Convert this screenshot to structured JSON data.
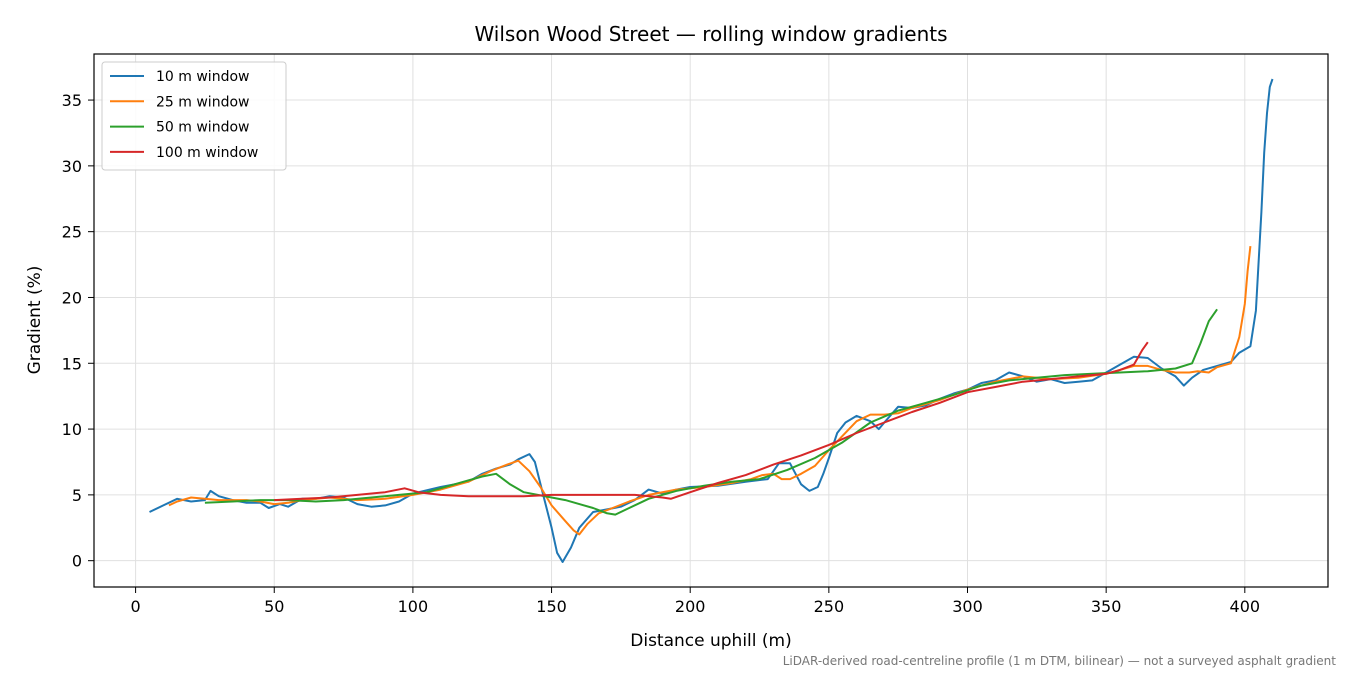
{
  "chart_data": {
    "type": "line",
    "title": "Wilson Wood Street — rolling window gradients",
    "xlabel": "Distance uphill (m)",
    "ylabel": "Gradient (%)",
    "xlim": [
      -15,
      430
    ],
    "ylim": [
      -2,
      38.5
    ],
    "xticks": [
      0,
      50,
      100,
      150,
      200,
      250,
      300,
      350,
      400
    ],
    "yticks": [
      0,
      5,
      10,
      15,
      20,
      25,
      30,
      35
    ],
    "grid": true,
    "legend_position": "top-left",
    "footnote": "LiDAR-derived road-centreline profile (1 m DTM, bilinear) — not a surveyed asphalt gradient",
    "series": [
      {
        "name": "10 m window",
        "color": "#1f77b4",
        "points": [
          [
            5,
            3.7
          ],
          [
            10,
            4.2
          ],
          [
            15,
            4.7
          ],
          [
            20,
            4.5
          ],
          [
            25,
            4.6
          ],
          [
            27,
            5.3
          ],
          [
            30,
            4.9
          ],
          [
            35,
            4.6
          ],
          [
            40,
            4.4
          ],
          [
            45,
            4.4
          ],
          [
            48,
            4.0
          ],
          [
            52,
            4.3
          ],
          [
            55,
            4.1
          ],
          [
            60,
            4.7
          ],
          [
            65,
            4.7
          ],
          [
            70,
            4.9
          ],
          [
            75,
            4.8
          ],
          [
            80,
            4.3
          ],
          [
            85,
            4.1
          ],
          [
            90,
            4.2
          ],
          [
            95,
            4.5
          ],
          [
            100,
            5.1
          ],
          [
            110,
            5.6
          ],
          [
            120,
            6.0
          ],
          [
            125,
            6.6
          ],
          [
            130,
            7.0
          ],
          [
            135,
            7.3
          ],
          [
            138,
            7.7
          ],
          [
            142,
            8.1
          ],
          [
            144,
            7.5
          ],
          [
            147,
            5.0
          ],
          [
            150,
            2.5
          ],
          [
            152,
            0.6
          ],
          [
            154,
            -0.1
          ],
          [
            157,
            1.0
          ],
          [
            160,
            2.5
          ],
          [
            165,
            3.7
          ],
          [
            170,
            3.9
          ],
          [
            175,
            4.1
          ],
          [
            180,
            4.6
          ],
          [
            185,
            5.4
          ],
          [
            190,
            5.1
          ],
          [
            195,
            5.4
          ],
          [
            200,
            5.6
          ],
          [
            210,
            5.7
          ],
          [
            220,
            6.0
          ],
          [
            228,
            6.2
          ],
          [
            232,
            7.4
          ],
          [
            236,
            7.4
          ],
          [
            240,
            5.8
          ],
          [
            243,
            5.3
          ],
          [
            246,
            5.6
          ],
          [
            248,
            6.6
          ],
          [
            250,
            7.8
          ],
          [
            253,
            9.7
          ],
          [
            256,
            10.5
          ],
          [
            260,
            11.0
          ],
          [
            265,
            10.6
          ],
          [
            268,
            10.0
          ],
          [
            270,
            10.5
          ],
          [
            275,
            11.7
          ],
          [
            280,
            11.6
          ],
          [
            285,
            11.8
          ],
          [
            290,
            12.3
          ],
          [
            295,
            12.7
          ],
          [
            300,
            13.0
          ],
          [
            305,
            13.5
          ],
          [
            310,
            13.7
          ],
          [
            315,
            14.3
          ],
          [
            320,
            14.0
          ],
          [
            325,
            13.6
          ],
          [
            330,
            13.8
          ],
          [
            335,
            13.5
          ],
          [
            340,
            13.6
          ],
          [
            345,
            13.7
          ],
          [
            350,
            14.3
          ],
          [
            355,
            14.9
          ],
          [
            360,
            15.5
          ],
          [
            365,
            15.4
          ],
          [
            370,
            14.6
          ],
          [
            375,
            14.0
          ],
          [
            378,
            13.3
          ],
          [
            381,
            13.9
          ],
          [
            385,
            14.5
          ],
          [
            390,
            14.8
          ],
          [
            395,
            15.1
          ],
          [
            398,
            15.8
          ],
          [
            402,
            16.3
          ],
          [
            404,
            19.0
          ],
          [
            406,
            26.5
          ],
          [
            407,
            31.0
          ],
          [
            408,
            34.0
          ],
          [
            409,
            36.0
          ],
          [
            410,
            36.6
          ]
        ]
      },
      {
        "name": "25 m window",
        "color": "#ff7f0e",
        "points": [
          [
            12,
            4.2
          ],
          [
            15,
            4.5
          ],
          [
            20,
            4.8
          ],
          [
            25,
            4.7
          ],
          [
            30,
            4.6
          ],
          [
            35,
            4.6
          ],
          [
            40,
            4.6
          ],
          [
            45,
            4.5
          ],
          [
            50,
            4.3
          ],
          [
            55,
            4.4
          ],
          [
            60,
            4.6
          ],
          [
            70,
            4.8
          ],
          [
            80,
            4.6
          ],
          [
            90,
            4.7
          ],
          [
            100,
            5.0
          ],
          [
            110,
            5.4
          ],
          [
            120,
            6.0
          ],
          [
            128,
            6.8
          ],
          [
            134,
            7.3
          ],
          [
            138,
            7.6
          ],
          [
            142,
            6.8
          ],
          [
            146,
            5.6
          ],
          [
            150,
            4.2
          ],
          [
            155,
            3.0
          ],
          [
            158,
            2.3
          ],
          [
            160,
            2.0
          ],
          [
            163,
            2.8
          ],
          [
            167,
            3.6
          ],
          [
            172,
            4.0
          ],
          [
            178,
            4.5
          ],
          [
            185,
            5.0
          ],
          [
            195,
            5.4
          ],
          [
            205,
            5.6
          ],
          [
            215,
            5.9
          ],
          [
            222,
            6.2
          ],
          [
            226,
            6.5
          ],
          [
            230,
            6.6
          ],
          [
            233,
            6.2
          ],
          [
            236,
            6.2
          ],
          [
            240,
            6.6
          ],
          [
            245,
            7.2
          ],
          [
            250,
            8.4
          ],
          [
            255,
            9.5
          ],
          [
            260,
            10.6
          ],
          [
            265,
            11.1
          ],
          [
            270,
            11.1
          ],
          [
            275,
            11.2
          ],
          [
            280,
            11.6
          ],
          [
            290,
            12.2
          ],
          [
            300,
            13.0
          ],
          [
            310,
            13.6
          ],
          [
            320,
            14.0
          ],
          [
            330,
            13.8
          ],
          [
            340,
            13.9
          ],
          [
            350,
            14.2
          ],
          [
            355,
            14.5
          ],
          [
            360,
            14.8
          ],
          [
            365,
            14.8
          ],
          [
            370,
            14.5
          ],
          [
            375,
            14.3
          ],
          [
            380,
            14.3
          ],
          [
            383,
            14.4
          ],
          [
            387,
            14.3
          ],
          [
            390,
            14.7
          ],
          [
            395,
            15.0
          ],
          [
            398,
            17.0
          ],
          [
            400,
            19.5
          ],
          [
            401,
            22.0
          ],
          [
            402,
            23.9
          ]
        ]
      },
      {
        "name": "50 m window",
        "color": "#2ca02c",
        "points": [
          [
            25,
            4.4
          ],
          [
            35,
            4.5
          ],
          [
            45,
            4.6
          ],
          [
            55,
            4.6
          ],
          [
            65,
            4.5
          ],
          [
            75,
            4.6
          ],
          [
            85,
            4.8
          ],
          [
            95,
            5.0
          ],
          [
            105,
            5.2
          ],
          [
            115,
            5.8
          ],
          [
            125,
            6.4
          ],
          [
            130,
            6.6
          ],
          [
            135,
            5.8
          ],
          [
            140,
            5.2
          ],
          [
            145,
            5.0
          ],
          [
            150,
            4.8
          ],
          [
            155,
            4.6
          ],
          [
            160,
            4.3
          ],
          [
            165,
            4.0
          ],
          [
            170,
            3.6
          ],
          [
            173,
            3.5
          ],
          [
            178,
            4.0
          ],
          [
            185,
            4.7
          ],
          [
            195,
            5.3
          ],
          [
            205,
            5.7
          ],
          [
            215,
            6.0
          ],
          [
            225,
            6.2
          ],
          [
            235,
            6.9
          ],
          [
            245,
            7.8
          ],
          [
            255,
            9.0
          ],
          [
            265,
            10.5
          ],
          [
            275,
            11.4
          ],
          [
            285,
            12.0
          ],
          [
            295,
            12.6
          ],
          [
            305,
            13.3
          ],
          [
            315,
            13.7
          ],
          [
            325,
            13.9
          ],
          [
            335,
            14.1
          ],
          [
            345,
            14.2
          ],
          [
            355,
            14.3
          ],
          [
            365,
            14.4
          ],
          [
            375,
            14.6
          ],
          [
            381,
            15.0
          ],
          [
            384,
            16.5
          ],
          [
            387,
            18.2
          ],
          [
            390,
            19.1
          ]
        ]
      },
      {
        "name": "100 m window",
        "color": "#d62728",
        "points": [
          [
            50,
            4.6
          ],
          [
            60,
            4.7
          ],
          [
            70,
            4.8
          ],
          [
            80,
            5.0
          ],
          [
            90,
            5.2
          ],
          [
            97,
            5.5
          ],
          [
            102,
            5.2
          ],
          [
            110,
            5.0
          ],
          [
            120,
            4.9
          ],
          [
            130,
            4.9
          ],
          [
            140,
            4.9
          ],
          [
            150,
            5.0
          ],
          [
            160,
            5.0
          ],
          [
            170,
            5.0
          ],
          [
            180,
            5.0
          ],
          [
            190,
            4.8
          ],
          [
            193,
            4.7
          ],
          [
            200,
            5.2
          ],
          [
            210,
            5.9
          ],
          [
            220,
            6.5
          ],
          [
            230,
            7.3
          ],
          [
            240,
            8.0
          ],
          [
            250,
            8.8
          ],
          [
            260,
            9.7
          ],
          [
            270,
            10.5
          ],
          [
            280,
            11.3
          ],
          [
            290,
            12.0
          ],
          [
            300,
            12.8
          ],
          [
            310,
            13.2
          ],
          [
            320,
            13.6
          ],
          [
            330,
            13.8
          ],
          [
            340,
            14.0
          ],
          [
            350,
            14.2
          ],
          [
            355,
            14.5
          ],
          [
            360,
            14.9
          ],
          [
            363,
            16.0
          ],
          [
            365,
            16.6
          ]
        ]
      }
    ]
  }
}
